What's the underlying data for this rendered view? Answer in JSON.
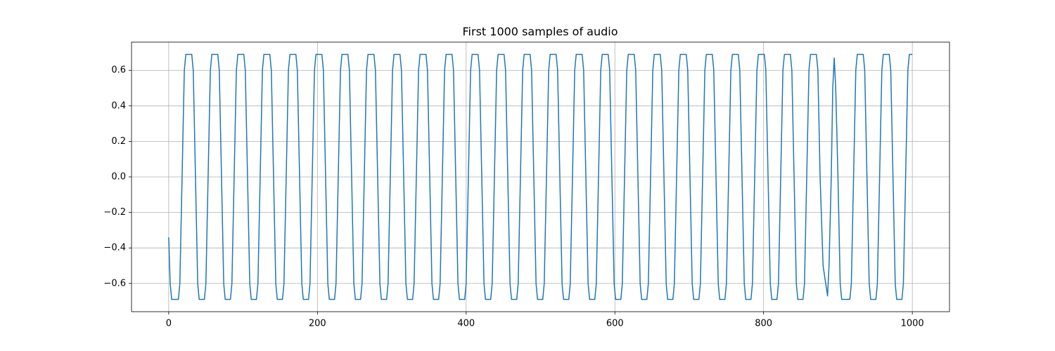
{
  "chart_data": {
    "type": "line",
    "title": "First 1000 samples of audio",
    "color": "#1f77b4",
    "grid": true,
    "xlim": [
      -50,
      1050
    ],
    "xticks": [
      0,
      200,
      400,
      600,
      800,
      1000
    ],
    "ylim": [
      -0.759,
      0.759
    ],
    "yticks": [
      {
        "value": -0.6,
        "label": "−0.6"
      },
      {
        "value": -0.4,
        "label": "−0.4"
      },
      {
        "value": -0.2,
        "label": "−0.2"
      },
      {
        "value": 0,
        "label": "0.0"
      },
      0.2,
      0.4,
      0.6
    ],
    "x": [
      0,
      2,
      4,
      13,
      15,
      18,
      21,
      23,
      31,
      33,
      36,
      39,
      41,
      48,
      50,
      53,
      56,
      58,
      66,
      68,
      71,
      74,
      76,
      83,
      85,
      88,
      91,
      93,
      101,
      103,
      106,
      109,
      111,
      118,
      120,
      123,
      126,
      128,
      136,
      138,
      141,
      144,
      146,
      153,
      155,
      158,
      161,
      163,
      171,
      173,
      176,
      179,
      181,
      188,
      190,
      193,
      196,
      198,
      206,
      208,
      211,
      214,
      216,
      223,
      225,
      228,
      231,
      233,
      241,
      243,
      246,
      249,
      251,
      258,
      260,
      263,
      266,
      268,
      276,
      278,
      281,
      284,
      286,
      293,
      295,
      298,
      301,
      303,
      311,
      313,
      316,
      319,
      321,
      328,
      330,
      333,
      336,
      338,
      346,
      348,
      351,
      354,
      356,
      363,
      365,
      368,
      371,
      373,
      381,
      383,
      386,
      389,
      391,
      398,
      400,
      403,
      406,
      408,
      416,
      418,
      421,
      424,
      426,
      433,
      435,
      438,
      441,
      443,
      451,
      453,
      456,
      459,
      461,
      468,
      470,
      473,
      476,
      478,
      486,
      488,
      491,
      494,
      496,
      503,
      505,
      508,
      511,
      513,
      521,
      523,
      526,
      529,
      531,
      538,
      540,
      543,
      546,
      548,
      556,
      558,
      561,
      564,
      566,
      573,
      575,
      578,
      581,
      583,
      591,
      593,
      596,
      599,
      601,
      608,
      610,
      613,
      616,
      618,
      626,
      628,
      631,
      634,
      636,
      643,
      645,
      648,
      651,
      653,
      661,
      663,
      666,
      669,
      671,
      678,
      680,
      683,
      686,
      688,
      696,
      698,
      701,
      704,
      706,
      713,
      715,
      718,
      721,
      723,
      731,
      733,
      736,
      739,
      741,
      748,
      750,
      753,
      756,
      758,
      766,
      768,
      771,
      774,
      776,
      783,
      785,
      788,
      791,
      793,
      801,
      803,
      806,
      809,
      811,
      818,
      820,
      823,
      826,
      828,
      836,
      838,
      841,
      844,
      846,
      853,
      855,
      858,
      861,
      863,
      871,
      873,
      876,
      880,
      886,
      888,
      891,
      893,
      895,
      897,
      900,
      903,
      905,
      916,
      918,
      921,
      924,
      926,
      934,
      936,
      939,
      942,
      944,
      951,
      953,
      956,
      959,
      961,
      969,
      971,
      974,
      977,
      979,
      986,
      988,
      991,
      994,
      996,
      1000
    ],
    "values": [
      -0.34,
      -0.6,
      -0.69,
      -0.69,
      -0.6,
      0,
      0.6,
      0.69,
      0.69,
      0.6,
      0,
      -0.6,
      -0.69,
      -0.69,
      -0.6,
      0,
      0.6,
      0.69,
      0.69,
      0.6,
      0,
      -0.6,
      -0.69,
      -0.69,
      -0.6,
      0,
      0.6,
      0.69,
      0.69,
      0.6,
      0,
      -0.6,
      -0.69,
      -0.69,
      -0.6,
      0,
      0.6,
      0.69,
      0.69,
      0.6,
      0,
      -0.6,
      -0.69,
      -0.69,
      -0.6,
      0,
      0.6,
      0.69,
      0.69,
      0.6,
      0,
      -0.6,
      -0.69,
      -0.69,
      -0.6,
      0,
      0.6,
      0.69,
      0.69,
      0.6,
      0,
      -0.6,
      -0.69,
      -0.69,
      -0.6,
      0,
      0.6,
      0.69,
      0.69,
      0.6,
      0,
      -0.6,
      -0.69,
      -0.69,
      -0.6,
      0,
      0.6,
      0.69,
      0.69,
      0.6,
      0,
      -0.6,
      -0.69,
      -0.69,
      -0.6,
      0,
      0.6,
      0.69,
      0.69,
      0.6,
      0,
      -0.6,
      -0.69,
      -0.69,
      -0.6,
      0,
      0.6,
      0.69,
      0.69,
      0.6,
      0,
      -0.6,
      -0.69,
      -0.69,
      -0.6,
      0,
      0.6,
      0.69,
      0.69,
      0.6,
      0,
      -0.6,
      -0.69,
      -0.69,
      -0.6,
      0,
      0.6,
      0.69,
      0.69,
      0.6,
      0,
      -0.6,
      -0.69,
      -0.69,
      -0.6,
      0,
      0.6,
      0.69,
      0.69,
      0.6,
      0,
      -0.6,
      -0.69,
      -0.69,
      -0.6,
      0,
      0.6,
      0.69,
      0.69,
      0.6,
      0,
      -0.6,
      -0.69,
      -0.69,
      -0.6,
      0,
      0.6,
      0.69,
      0.69,
      0.6,
      0,
      -0.6,
      -0.69,
      -0.69,
      -0.6,
      0,
      0.6,
      0.69,
      0.69,
      0.6,
      0,
      -0.6,
      -0.69,
      -0.69,
      -0.6,
      0,
      0.6,
      0.69,
      0.69,
      0.6,
      0,
      -0.6,
      -0.69,
      -0.69,
      -0.6,
      0,
      0.6,
      0.69,
      0.69,
      0.6,
      0,
      -0.6,
      -0.69,
      -0.69,
      -0.6,
      0,
      0.6,
      0.69,
      0.69,
      0.6,
      0,
      -0.6,
      -0.69,
      -0.69,
      -0.6,
      0,
      0.6,
      0.69,
      0.69,
      0.6,
      0,
      -0.6,
      -0.69,
      -0.69,
      -0.6,
      0,
      0.6,
      0.69,
      0.69,
      0.6,
      0,
      -0.6,
      -0.69,
      -0.69,
      -0.6,
      0,
      0.6,
      0.69,
      0.69,
      0.6,
      0,
      -0.6,
      -0.69,
      -0.69,
      -0.6,
      0,
      0.6,
      0.69,
      0.69,
      0.6,
      0,
      -0.6,
      -0.69,
      -0.69,
      -0.6,
      0,
      0.6,
      0.69,
      0.69,
      0.6,
      0,
      -0.6,
      -0.69,
      -0.69,
      -0.6,
      0,
      0.6,
      0.69,
      0.69,
      0.6,
      0,
      -0.5,
      -0.67,
      -0.5,
      0,
      0.5,
      0.67,
      0.5,
      0,
      -0.6,
      -0.69,
      -0.69,
      -0.6,
      0,
      0.6,
      0.69,
      0.69,
      0.6,
      0,
      -0.6,
      -0.69,
      -0.69,
      -0.6,
      0,
      0.6,
      0.69,
      0.69,
      0.6,
      0,
      -0.6,
      -0.69,
      -0.69,
      -0.6,
      0,
      0.6,
      0.69,
      0.69
    ]
  }
}
